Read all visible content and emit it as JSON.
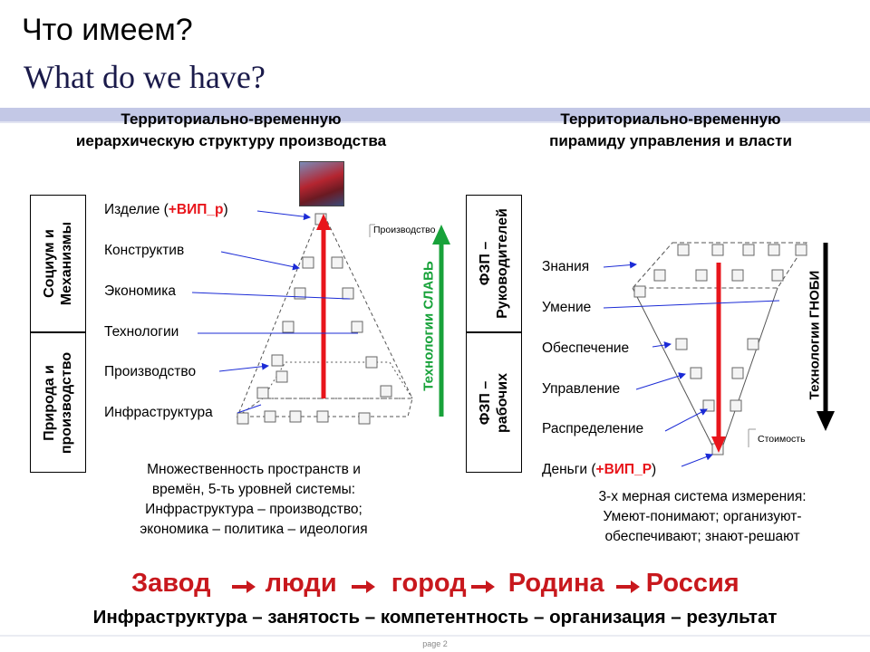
{
  "title_ru": "Что имеем?",
  "title_en": "What do we have?",
  "left": {
    "heading_line1": "Территориально-временную",
    "heading_line2": "иерархическую структуру  производства",
    "box_top": "Социум и\nМеханизмы",
    "box_bottom": "Природа и\nпроизводство",
    "levels": [
      "Изделие (",
      "+ВИП_р",
      ")",
      "Конструктив",
      "Экономика",
      "Технологии",
      "Производство",
      "Инфраструктура"
    ],
    "callout": "Производство",
    "vertical_tech": "Технологии СЛАВЬ",
    "caption_l1": "Множественность пространств и",
    "caption_l2": "времён, 5-ть уровней системы:",
    "caption_l3": "Инфраструктура – производство;",
    "caption_l4": "экономика – политика  – идеология"
  },
  "right": {
    "heading_line1": "Территориально-временную",
    "heading_line2": "пирамиду  управления и власти",
    "box_top": "ФЗП –\nРуководителей",
    "box_bottom": "ФЗП –\nрабочих",
    "levels": [
      "Знания",
      "Умение",
      "Обеспечение",
      "Управление",
      "Распределение",
      "Деньги (",
      "+ВИП_Р",
      ")"
    ],
    "callout": "Стоимость",
    "vertical_tech": "Технологии ГНОБИ",
    "caption_l1": "3-х мерная система измерения:",
    "caption_l2": "Умеют-понимают; организуют-",
    "caption_l3": "обеспечивают; знают-решают"
  },
  "slogan": {
    "w1": "Завод",
    "w2": "люди",
    "w3": "город",
    "w4": "Родина",
    "w5": "Россия"
  },
  "bottom_line": "Инфраструктура – занятость – компетентность – организация – результат",
  "footer": "page  2",
  "colors": {
    "accent_red": "#e8151b",
    "green": "#18a23a",
    "blue_line": "#1b2bd6",
    "bar": "#c3c8e6"
  }
}
